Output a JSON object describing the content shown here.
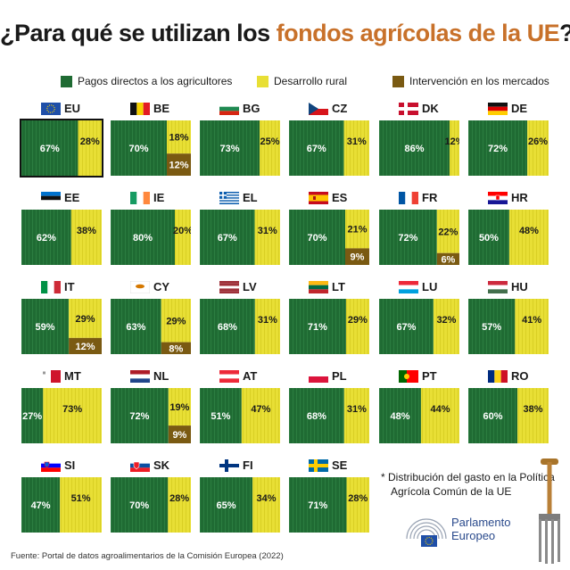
{
  "title": {
    "before": "¿Para qué se utilizan los ",
    "highlight": "fondos agrícolas de la UE",
    "after": "?*"
  },
  "legend": {
    "items": [
      {
        "label": "Pagos directos a los agricultores",
        "color": "#1f6b33"
      },
      {
        "label": "Desarrollo rural",
        "color": "#e8df35"
      },
      {
        "label": "Intervención en los mercados",
        "color": "#7a5a12"
      }
    ]
  },
  "chart_data": {
    "type": "bar",
    "stacked": true,
    "unit": "%",
    "series_names": [
      "Pagos directos a los agricultores",
      "Desarrollo rural",
      "Intervención en los mercados"
    ],
    "countries": [
      {
        "code": "EU",
        "direct": 67,
        "rural": 28,
        "market": null
      },
      {
        "code": "BE",
        "direct": 70,
        "rural": 18,
        "market": 12
      },
      {
        "code": "BG",
        "direct": 73,
        "rural": 25,
        "market": null
      },
      {
        "code": "CZ",
        "direct": 67,
        "rural": 31,
        "market": null
      },
      {
        "code": "DK",
        "direct": 86,
        "rural": 12,
        "market": null
      },
      {
        "code": "DE",
        "direct": 72,
        "rural": 26,
        "market": null
      },
      {
        "code": "EE",
        "direct": 62,
        "rural": 38,
        "market": null
      },
      {
        "code": "IE",
        "direct": 80,
        "rural": 20,
        "market": null
      },
      {
        "code": "EL",
        "direct": 67,
        "rural": 31,
        "market": null
      },
      {
        "code": "ES",
        "direct": 70,
        "rural": 21,
        "market": 9
      },
      {
        "code": "FR",
        "direct": 72,
        "rural": 22,
        "market": 6
      },
      {
        "code": "HR",
        "direct": 50,
        "rural": 48,
        "market": null
      },
      {
        "code": "IT",
        "direct": 59,
        "rural": 29,
        "market": 12
      },
      {
        "code": "CY",
        "direct": 63,
        "rural": 29,
        "market": 8
      },
      {
        "code": "LV",
        "direct": 68,
        "rural": 31,
        "market": null
      },
      {
        "code": "LT",
        "direct": 71,
        "rural": 29,
        "market": null
      },
      {
        "code": "LU",
        "direct": 67,
        "rural": 32,
        "market": null
      },
      {
        "code": "HU",
        "direct": 57,
        "rural": 41,
        "market": null
      },
      {
        "code": "MT",
        "direct": 27,
        "rural": 73,
        "market": null
      },
      {
        "code": "NL",
        "direct": 72,
        "rural": 19,
        "market": 9
      },
      {
        "code": "AT",
        "direct": 51,
        "rural": 47,
        "market": null
      },
      {
        "code": "PL",
        "direct": 68,
        "rural": 31,
        "market": null
      },
      {
        "code": "PT",
        "direct": 48,
        "rural": 44,
        "market": null
      },
      {
        "code": "RO",
        "direct": 60,
        "rural": 38,
        "market": null
      },
      {
        "code": "SI",
        "direct": 47,
        "rural": 51,
        "market": null
      },
      {
        "code": "SK",
        "direct": 70,
        "rural": 28,
        "market": null
      },
      {
        "code": "FI",
        "direct": 65,
        "rural": 34,
        "market": null
      },
      {
        "code": "SE",
        "direct": 71,
        "rural": 28,
        "market": null
      }
    ]
  },
  "footnote": {
    "line1": "* Distribución del gasto en la Política",
    "line2": "Agrícola Común de la UE"
  },
  "logo": {
    "line1": "Parlamento",
    "line2": "Europeo"
  },
  "source": "Fuente: Portal de datos agroalimentarios de la Comisión Europea (2022)",
  "colors": {
    "direct": "#1f6b33",
    "direct_stripe": "#2b7d40",
    "rural": "#e8df35",
    "rural_stripe": "#d9cf24",
    "market": "#7a5a12",
    "title_highlight": "#c8712a"
  }
}
